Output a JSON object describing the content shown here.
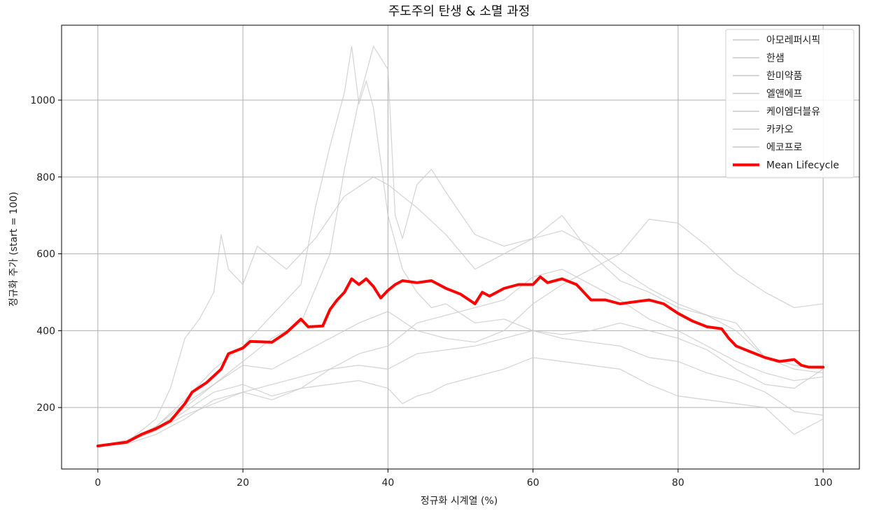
{
  "chart_data": {
    "type": "line",
    "title": "주도주의 탄생 & 소멸 과정",
    "xlabel": "정규화 시계열 (%)",
    "ylabel": "정규화 주가 (start = 100)",
    "xlim": [
      -5,
      105
    ],
    "ylim": [
      40,
      1195
    ],
    "xticks": [
      0,
      20,
      40,
      60,
      80,
      100
    ],
    "yticks": [
      200,
      400,
      600,
      800,
      1000
    ],
    "grid": true,
    "legend_position": "top-right",
    "colors": {
      "stock_line": "#c8c8c8",
      "mean_line": "#ff0000",
      "axes": "#000000",
      "grid": "#b0b0b0"
    },
    "series": [
      {
        "name": "아모레퍼시픽",
        "x": [
          0,
          4,
          8,
          12,
          16,
          20,
          24,
          28,
          32,
          34,
          36,
          38,
          40,
          41,
          42,
          44,
          46,
          48,
          52,
          56,
          60,
          64,
          68,
          72,
          76,
          80,
          84,
          88,
          92,
          96,
          100
        ],
        "y": [
          100,
          110,
          145,
          200,
          260,
          320,
          380,
          420,
          600,
          820,
          1000,
          1140,
          1080,
          700,
          640,
          780,
          820,
          760,
          650,
          620,
          640,
          660,
          620,
          560,
          510,
          470,
          440,
          420,
          330,
          300,
          290
        ]
      },
      {
        "name": "한샘",
        "x": [
          0,
          4,
          8,
          10,
          12,
          14,
          16,
          17,
          18,
          20,
          22,
          26,
          30,
          34,
          38,
          40,
          44,
          48,
          52,
          56,
          60,
          64,
          68,
          72,
          76,
          80,
          84,
          88,
          92,
          96,
          100
        ],
        "y": [
          100,
          110,
          170,
          250,
          380,
          430,
          500,
          650,
          560,
          520,
          620,
          560,
          640,
          750,
          800,
          780,
          720,
          650,
          560,
          600,
          640,
          700,
          600,
          530,
          500,
          460,
          440,
          400,
          330,
          310,
          300
        ]
      },
      {
        "name": "한미약품",
        "x": [
          0,
          4,
          8,
          12,
          16,
          20,
          24,
          28,
          30,
          32,
          34,
          35,
          36,
          37,
          38,
          40,
          42,
          44,
          46,
          48,
          52,
          56,
          60,
          64,
          68,
          72,
          76,
          80,
          84,
          88,
          92,
          96,
          100
        ],
        "y": [
          100,
          115,
          150,
          220,
          300,
          360,
          440,
          520,
          720,
          880,
          1020,
          1140,
          990,
          1050,
          980,
          700,
          560,
          500,
          460,
          470,
          420,
          430,
          400,
          380,
          370,
          360,
          330,
          320,
          290,
          270,
          240,
          190,
          180
        ]
      },
      {
        "name": "엘앤에프",
        "x": [
          0,
          4,
          8,
          12,
          16,
          20,
          24,
          28,
          32,
          36,
          40,
          44,
          48,
          52,
          56,
          60,
          64,
          68,
          72,
          76,
          80,
          84,
          88,
          92,
          96,
          100
        ],
        "y": [
          100,
          110,
          150,
          210,
          260,
          310,
          300,
          340,
          380,
          420,
          450,
          400,
          380,
          370,
          400,
          470,
          520,
          560,
          600,
          690,
          680,
          620,
          550,
          500,
          460,
          470
        ]
      },
      {
        "name": "케이엠더블유",
        "x": [
          0,
          4,
          8,
          12,
          16,
          20,
          24,
          28,
          32,
          36,
          40,
          42,
          44,
          46,
          48,
          52,
          56,
          60,
          64,
          68,
          72,
          76,
          80,
          84,
          88,
          92,
          96,
          100
        ],
        "y": [
          100,
          110,
          140,
          190,
          240,
          260,
          230,
          250,
          260,
          270,
          250,
          210,
          230,
          240,
          260,
          280,
          300,
          330,
          320,
          310,
          300,
          260,
          230,
          220,
          210,
          200,
          130,
          170
        ]
      },
      {
        "name": "카카오",
        "x": [
          0,
          4,
          8,
          12,
          16,
          20,
          24,
          28,
          32,
          36,
          40,
          44,
          48,
          52,
          56,
          60,
          64,
          68,
          72,
          76,
          80,
          84,
          88,
          92,
          96,
          100
        ],
        "y": [
          100,
          105,
          130,
          170,
          220,
          240,
          220,
          250,
          300,
          310,
          300,
          340,
          350,
          360,
          380,
          400,
          390,
          400,
          420,
          400,
          380,
          350,
          300,
          260,
          250,
          300
        ]
      },
      {
        "name": "에코프로",
        "x": [
          0,
          4,
          8,
          12,
          16,
          20,
          24,
          28,
          32,
          36,
          40,
          44,
          48,
          52,
          56,
          60,
          64,
          68,
          72,
          76,
          80,
          84,
          88,
          92,
          96,
          100
        ],
        "y": [
          100,
          110,
          140,
          180,
          210,
          240,
          260,
          280,
          300,
          340,
          360,
          420,
          440,
          460,
          480,
          540,
          560,
          520,
          480,
          430,
          400,
          360,
          320,
          290,
          270,
          280
        ]
      },
      {
        "name": "Mean Lifecycle",
        "x": [
          0,
          2,
          4,
          6,
          8,
          10,
          12,
          13,
          15,
          17,
          18,
          20,
          21,
          24,
          26,
          28,
          29,
          31,
          32,
          33,
          34,
          35,
          36,
          37,
          38,
          39,
          40,
          41,
          42,
          44,
          46,
          48,
          50,
          52,
          53,
          54,
          56,
          58,
          60,
          61,
          62,
          64,
          66,
          67,
          68,
          70,
          72,
          74,
          76,
          78,
          80,
          82,
          84,
          86,
          87,
          88,
          90,
          92,
          94,
          96,
          97,
          98,
          100
        ],
        "y": [
          100,
          105,
          110,
          130,
          145,
          165,
          210,
          240,
          265,
          300,
          340,
          355,
          372,
          370,
          395,
          430,
          410,
          412,
          455,
          480,
          500,
          535,
          520,
          535,
          515,
          485,
          505,
          520,
          530,
          525,
          530,
          510,
          495,
          470,
          500,
          490,
          510,
          520,
          520,
          540,
          525,
          535,
          520,
          500,
          480,
          480,
          470,
          475,
          480,
          470,
          445,
          425,
          410,
          405,
          380,
          360,
          345,
          330,
          320,
          325,
          310,
          305,
          305
        ]
      }
    ]
  }
}
